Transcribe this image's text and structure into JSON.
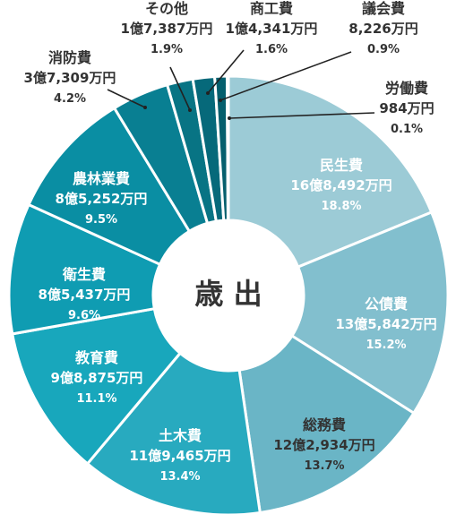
{
  "chart_data": {
    "type": "pie",
    "style": "donut",
    "center_label": "歳 出",
    "unit": "%",
    "slices": [
      {
        "name": "民生費",
        "amount": "16億8,492万円",
        "value": 18.8,
        "color": "#9ccbd6",
        "text_color": "#ffffff"
      },
      {
        "name": "公債費",
        "amount": "13億5,842万円",
        "value": 15.2,
        "color": "#82bfce",
        "text_color": "#ffffff"
      },
      {
        "name": "総務費",
        "amount": "12億2,934万円",
        "value": 13.7,
        "color": "#6ab5c6",
        "text_color": "#333333"
      },
      {
        "name": "土木費",
        "amount": "11億9,465万円",
        "value": 13.4,
        "color": "#28aabf",
        "text_color": "#ffffff"
      },
      {
        "name": "教育費",
        "amount": "9億8,875万円",
        "value": 11.1,
        "color": "#18a7bc",
        "text_color": "#ffffff"
      },
      {
        "name": "衛生費",
        "amount": "8億5,437万円",
        "value": 9.6,
        "color": "#0f9cb2",
        "text_color": "#ffffff"
      },
      {
        "name": "農林業費",
        "amount": "8億5,252万円",
        "value": 9.5,
        "color": "#0a8ea3",
        "text_color": "#ffffff"
      },
      {
        "name": "消防費",
        "amount": "3億7,309万円",
        "value": 4.2,
        "color": "#097f92",
        "text_color": "#333333"
      },
      {
        "name": "その他",
        "amount": "1億7,387万円",
        "value": 1.9,
        "color": "#087484",
        "text_color": "#333333"
      },
      {
        "name": "商工費",
        "amount": "1億4,341万円",
        "value": 1.6,
        "color": "#06697a",
        "text_color": "#333333"
      },
      {
        "name": "議会費",
        "amount": "8,226万円",
        "value": 0.9,
        "color": "#055f6d",
        "text_color": "#333333"
      },
      {
        "name": "労働費",
        "amount": "984万円",
        "value": 0.1,
        "color": "#044f5b",
        "text_color": "#333333"
      }
    ]
  }
}
